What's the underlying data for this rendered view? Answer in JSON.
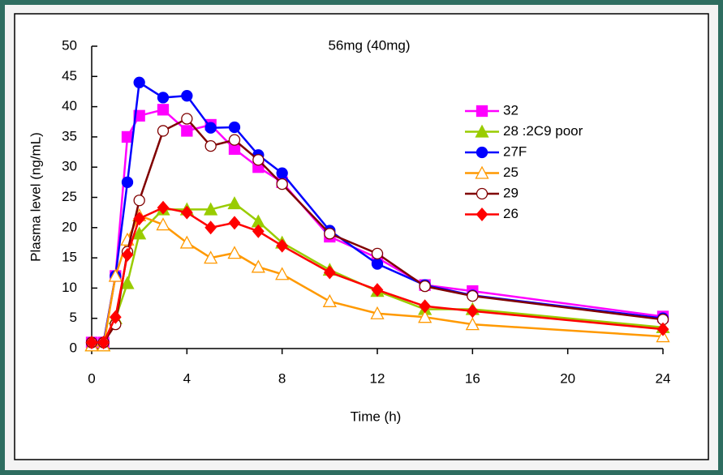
{
  "chart_data": {
    "type": "line",
    "title": "56mg (40mg)",
    "x_label": "Time (h)",
    "y_label": "Plasma level (ng/mL)",
    "xlim": [
      0,
      24
    ],
    "xticks": [
      0,
      4,
      8,
      12,
      16,
      20,
      24
    ],
    "ylim": [
      0,
      50
    ],
    "yticks": [
      0,
      5,
      10,
      15,
      20,
      25,
      30,
      35,
      40,
      45,
      50
    ],
    "x": [
      0,
      0.5,
      1,
      1.5,
      2,
      3,
      4,
      5,
      6,
      7,
      8,
      10,
      12,
      14,
      16,
      24
    ],
    "series": [
      {
        "name": "32",
        "color": "#ff00ff",
        "marker": "square",
        "values": [
          1,
          1,
          12,
          35,
          38.5,
          39.5,
          36,
          37,
          33,
          30,
          27.5,
          18.5,
          15,
          10.5,
          9.5,
          5.3
        ]
      },
      {
        "name": "28 :2C9 poor",
        "color": "#99cc00",
        "marker": "triangle",
        "values": [
          0.5,
          0.5,
          5,
          10.8,
          19,
          23,
          23,
          23,
          24,
          21,
          17.5,
          13,
          9.5,
          6.5,
          6.5,
          3.5
        ]
      },
      {
        "name": "27F",
        "color": "#0000ff",
        "marker": "circle",
        "values": [
          1,
          1,
          12,
          27.5,
          44,
          41.5,
          41.8,
          36.5,
          36.6,
          32,
          29,
          19.5,
          14,
          10.5,
          8.8,
          5
        ]
      },
      {
        "name": "25",
        "color": "#ff9900",
        "marker": "triangle-open",
        "values": [
          0.5,
          0.5,
          12,
          18,
          22,
          20.5,
          17.5,
          15,
          15.8,
          13.5,
          12.3,
          7.8,
          5.8,
          5.2,
          4,
          2
        ]
      },
      {
        "name": "29",
        "color": "#800000",
        "marker": "circle-open",
        "values": [
          1,
          1,
          4,
          16,
          24.5,
          36,
          38,
          33.5,
          34.5,
          31.2,
          27.2,
          19,
          15.7,
          10.3,
          8.7,
          4.8
        ]
      },
      {
        "name": "26",
        "color": "#ff0000",
        "marker": "diamond",
        "values": [
          1,
          1,
          5.2,
          15.5,
          21.5,
          23.3,
          22.5,
          20,
          20.8,
          19.4,
          17,
          12.6,
          9.7,
          7,
          6.2,
          3.2
        ]
      }
    ]
  }
}
